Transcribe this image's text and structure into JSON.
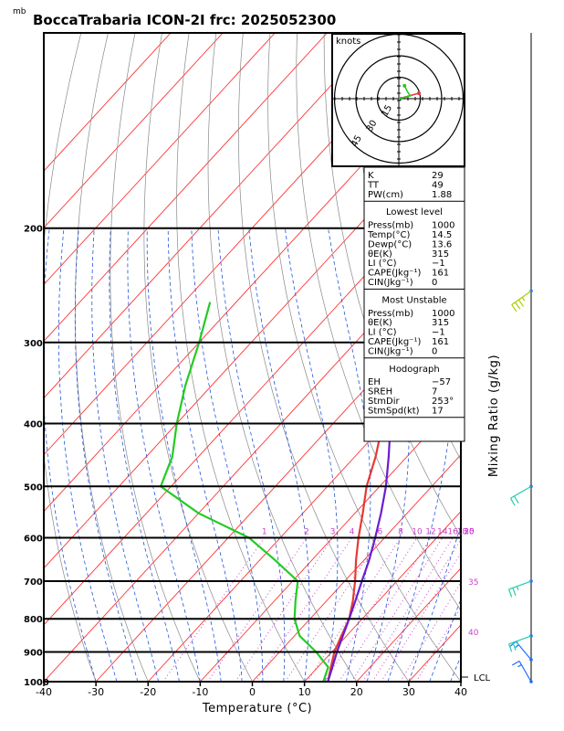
{
  "title": "BoccaTrabaria ICON-2I frc: 2025052300",
  "unit_mb": "mb",
  "xlabel": "Temperature (°C)",
  "right_label": "Mixing Ratio (g/kg)",
  "lcl_label": "LCL",
  "hodograph": {
    "units": "knots",
    "ring_labels": [
      "15",
      "30",
      "45"
    ]
  },
  "indices": [
    {
      "label": "K",
      "value": "29"
    },
    {
      "label": "TT",
      "value": "49"
    },
    {
      "label": "PW(cm)",
      "value": "1.88"
    }
  ],
  "lowest_level": {
    "heading": "Lowest level",
    "rows": [
      {
        "label": "Press(mb)",
        "value": "1000"
      },
      {
        "label": "Temp(°C)",
        "value": "14.5"
      },
      {
        "label": "Dewp(°C)",
        "value": "13.6"
      },
      {
        "label": "θE(K)",
        "value": "315"
      },
      {
        "label": "LI (°C)",
        "value": "−1"
      },
      {
        "label": "CAPE(Jkg⁻¹)",
        "value": "161"
      },
      {
        "label": "CIN(Jkg⁻¹)",
        "value": "0"
      }
    ]
  },
  "most_unstable": {
    "heading": "Most Unstable",
    "rows": [
      {
        "label": "Press(mb)",
        "value": "1000"
      },
      {
        "label": "θE(K)",
        "value": "315"
      },
      {
        "label": "LI (°C)",
        "value": "−1"
      },
      {
        "label": "CAPE(Jkg⁻¹)",
        "value": "161"
      },
      {
        "label": "CIN(Jkg⁻¹)",
        "value": "0"
      }
    ]
  },
  "hodograph_box": {
    "heading": "Hodograph",
    "rows": [
      {
        "label": "EH",
        "value": "−57"
      },
      {
        "label": "SREH",
        "value": "7"
      },
      {
        "label": "StmDir",
        "value": "253°"
      },
      {
        "label": "StmSpd(kt)",
        "value": "17"
      }
    ]
  },
  "mixing_ratio_labels": [
    "1",
    "2",
    "3",
    "4",
    "6",
    "8",
    "10",
    "12",
    "14",
    "16",
    "18",
    "20",
    "25",
    "30"
  ],
  "right_numbers": [
    "35",
    "40"
  ],
  "colors": {
    "temperature": "#e53935",
    "dewpoint": "#22cc22",
    "parcel": "#6a1ecf",
    "isotherm": "#ff3333",
    "dry_adiabat": "#888888",
    "moist_adiabat": "#2255dd",
    "mixing_ratio": "#cc44cc"
  },
  "chart_data": {
    "type": "line",
    "title": "BoccaTrabaria ICON-2I frc: 2025052300",
    "xlabel": "Temperature (°C)",
    "ylabel": "mb",
    "xlim": [
      -40,
      40
    ],
    "ylim": [
      1000,
      100
    ],
    "y_scale": "log",
    "x_ticks": [
      -40,
      -30,
      -20,
      -10,
      0,
      10,
      20,
      30,
      40
    ],
    "y_ticks": [
      1000,
      900,
      800,
      700,
      600,
      500,
      400,
      300,
      200
    ],
    "series": [
      {
        "name": "Temperature",
        "points": [
          [
            1000,
            14.5
          ],
          [
            950,
            12.5
          ],
          [
            900,
            10.5
          ],
          [
            850,
            9
          ],
          [
            800,
            7.5
          ],
          [
            750,
            5
          ],
          [
            700,
            2
          ],
          [
            650,
            -1.5
          ],
          [
            600,
            -5
          ],
          [
            550,
            -8.5
          ],
          [
            500,
            -12.5
          ],
          [
            450,
            -16
          ],
          [
            400,
            -20.5
          ],
          [
            350,
            -25
          ],
          [
            300,
            -30
          ],
          [
            260,
            -35
          ]
        ]
      },
      {
        "name": "Dewpoint",
        "points": [
          [
            1000,
            13.6
          ],
          [
            950,
            12
          ],
          [
            900,
            7
          ],
          [
            850,
            1
          ],
          [
            800,
            -3
          ],
          [
            750,
            -6
          ],
          [
            700,
            -9
          ],
          [
            650,
            -17
          ],
          [
            600,
            -26
          ],
          [
            550,
            -40
          ],
          [
            500,
            -52
          ],
          [
            450,
            -55
          ],
          [
            400,
            -60
          ],
          [
            350,
            -65
          ],
          [
            300,
            -70
          ],
          [
            260,
            -75
          ]
        ]
      },
      {
        "name": "Parcel",
        "points": [
          [
            1000,
            14.5
          ],
          [
            950,
            12.8
          ],
          [
            900,
            11
          ],
          [
            850,
            9.3
          ],
          [
            800,
            7.5
          ],
          [
            750,
            5.5
          ],
          [
            700,
            3.3
          ],
          [
            650,
            1
          ],
          [
            600,
            -1.8
          ],
          [
            550,
            -5
          ],
          [
            500,
            -8.8
          ],
          [
            450,
            -13.5
          ],
          [
            400,
            -19
          ],
          [
            350,
            -26
          ],
          [
            300,
            -34
          ],
          [
            250,
            -45
          ],
          [
            200,
            -58
          ],
          [
            150,
            -72
          ],
          [
            110,
            -83
          ]
        ]
      }
    ],
    "wind_barbs": [
      {
        "pressure": 1000,
        "direction": 330,
        "speed_kt": 5
      },
      {
        "pressure": 925,
        "direction": 320,
        "speed_kt": 5
      },
      {
        "pressure": 850,
        "direction": 250,
        "speed_kt": 15
      },
      {
        "pressure": 700,
        "direction": 250,
        "speed_kt": 15
      },
      {
        "pressure": 500,
        "direction": 240,
        "speed_kt": 20
      },
      {
        "pressure": 250,
        "direction": 235,
        "speed_kt": 25
      }
    ],
    "hodograph_points": [
      [
        0,
        0
      ],
      [
        5,
        1
      ],
      [
        8,
        2
      ],
      [
        6,
        5
      ],
      [
        4,
        9
      ]
    ]
  }
}
